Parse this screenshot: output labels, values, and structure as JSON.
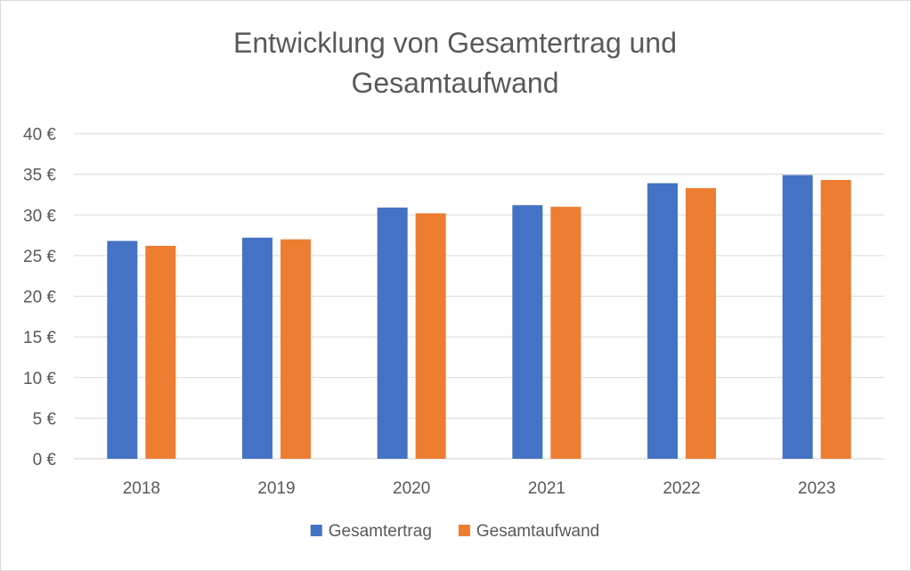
{
  "chart_data": {
    "type": "bar",
    "title_lines": [
      "Entwicklung von Gesamtertrag und",
      "Gesamtaufwand"
    ],
    "categories": [
      "2018",
      "2019",
      "2020",
      "2021",
      "2022",
      "2023"
    ],
    "series": [
      {
        "name": "Gesamtertrag",
        "color": "#4472C4",
        "values": [
          26.8,
          27.2,
          30.9,
          31.2,
          33.9,
          34.9
        ]
      },
      {
        "name": "Gesamtaufwand",
        "color": "#ED7D31",
        "values": [
          26.2,
          27.0,
          30.2,
          31.0,
          33.3,
          34.3
        ]
      }
    ],
    "y_ticks": [
      "0 €",
      "5 €",
      "10 €",
      "15 €",
      "20 €",
      "25 €",
      "30 €",
      "35 €",
      "40 €"
    ],
    "ylim": [
      0,
      40
    ],
    "y_step": 5,
    "grid": true,
    "legend_position": "bottom",
    "xlabel": "",
    "ylabel": ""
  }
}
